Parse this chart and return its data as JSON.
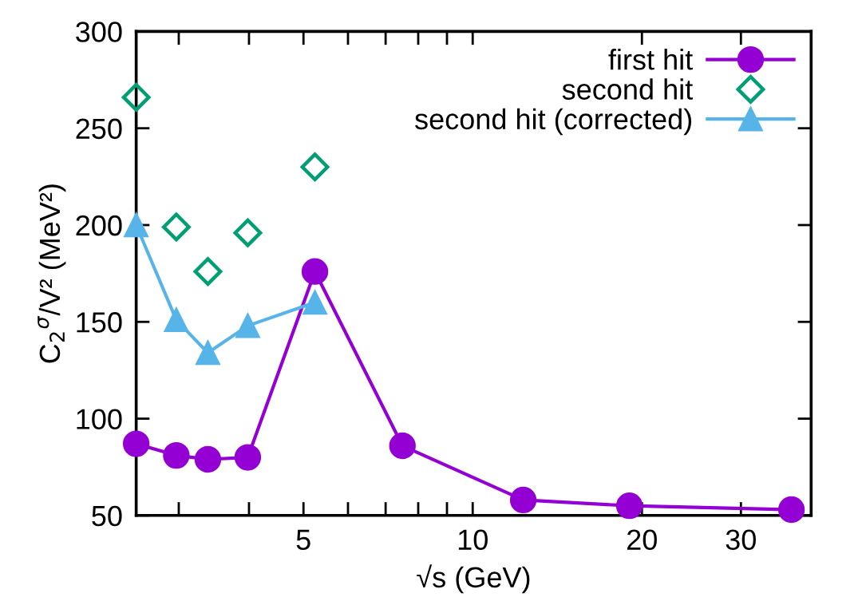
{
  "chart_data": {
    "type": "line",
    "xlabel": "√s (GeV)",
    "ylabel": "C$_{2}$$^{σ}$/V² (MeV²)",
    "log": "x",
    "xlim": [
      2.52,
      40
    ],
    "ylim": [
      50,
      300
    ],
    "xticks": [
      {
        "value": 3,
        "label": null
      },
      {
        "value": 4,
        "label": null
      },
      5,
      {
        "value": 6,
        "label": null
      },
      {
        "value": 7,
        "label": null
      },
      {
        "value": 8,
        "label": null
      },
      {
        "value": 9,
        "label": null
      },
      10,
      20,
      30
    ],
    "yticks": [
      50,
      100,
      150,
      200,
      250,
      300
    ],
    "grid": false,
    "legend": "top right",
    "series": [
      {
        "name": "first hit",
        "marker": "circle",
        "color": "#9400d3",
        "x": [
          2.52,
          2.97,
          3.38,
          3.98,
          5.24,
          7.5,
          12.3,
          19.0,
          36.9
        ],
        "values": [
          87,
          81,
          79,
          80,
          176,
          86,
          58,
          55,
          53
        ]
      },
      {
        "name": "second hit",
        "type": "scatter",
        "marker": "diamond",
        "color": "#009e73",
        "x": [
          2.52,
          2.97,
          3.38,
          3.98,
          5.24
        ],
        "values": [
          266,
          199,
          176,
          196,
          230
        ]
      },
      {
        "name": "second hit (corrected)",
        "marker": "triangle",
        "color": "#56b4e9",
        "x": [
          2.52,
          2.97,
          3.38,
          3.98,
          5.24
        ],
        "values": [
          200,
          151,
          134,
          148,
          160
        ]
      }
    ]
  }
}
